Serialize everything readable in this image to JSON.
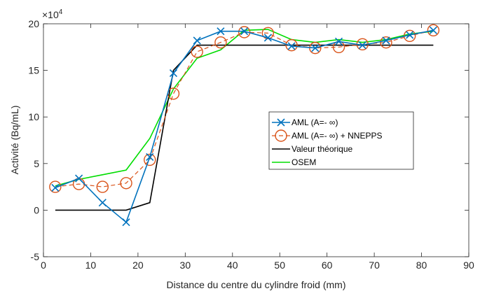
{
  "chart_data": {
    "type": "line",
    "xlabel": "Distance du centre du cylindre froid (mm)",
    "ylabel": "Activité (Bq/mL)",
    "y_exponent_label": "×10",
    "y_exponent_power": "4",
    "xlim": [
      0,
      90
    ],
    "ylim": [
      -5,
      20
    ],
    "xticks": [
      "0",
      "10",
      "20",
      "30",
      "40",
      "50",
      "60",
      "70",
      "80",
      "90"
    ],
    "yticks": [
      "-5",
      "0",
      "5",
      "10",
      "15",
      "20"
    ],
    "legend_position": "right",
    "series": [
      {
        "name": "AML (A=-  ∞)",
        "color": "#0072BD",
        "style": "solid",
        "marker": "x",
        "x": [
          2.5,
          7.5,
          12.5,
          17.5,
          22.5,
          27.5,
          32.5,
          37.5,
          42.5,
          47.5,
          52.5,
          57.5,
          62.5,
          67.5,
          72.5,
          77.5,
          82.5
        ],
        "y": [
          2.4,
          3.4,
          0.8,
          -1.3,
          5.7,
          14.7,
          18.2,
          19.2,
          19.2,
          18.5,
          17.6,
          17.4,
          18.1,
          17.7,
          18.2,
          18.8,
          19.3
        ]
      },
      {
        "name": "AML (A=-  ∞) + NNEPPS",
        "color": "#D95319",
        "style": "dashed",
        "marker": "o",
        "x": [
          2.5,
          7.5,
          12.5,
          17.5,
          22.5,
          27.5,
          32.5,
          37.5,
          42.5,
          47.5,
          52.5,
          57.5,
          62.5,
          67.5,
          72.5,
          77.5,
          82.5
        ],
        "y": [
          2.5,
          2.8,
          2.5,
          2.9,
          5.4,
          12.5,
          17.0,
          18.0,
          19.1,
          19.0,
          17.7,
          17.4,
          17.5,
          17.8,
          18.0,
          18.7,
          19.3
        ]
      },
      {
        "name": "Valeur théorique",
        "color": "#000000",
        "style": "solid",
        "marker": "none",
        "x": [
          2.5,
          17.5,
          22.5,
          27.5,
          32.5,
          82.5
        ],
        "y": [
          0,
          0,
          0.8,
          15.0,
          17.7,
          17.7
        ]
      },
      {
        "name": "OSEM",
        "color": "#00DD00",
        "style": "solid",
        "marker": "none",
        "x": [
          2.5,
          7.5,
          12.5,
          17.5,
          22.5,
          27.5,
          32.5,
          37.5,
          42.5,
          47.5,
          52.5,
          57.5,
          62.5,
          67.5,
          72.5,
          77.5,
          82.5
        ],
        "y": [
          2.6,
          3.3,
          3.8,
          4.3,
          7.7,
          13.0,
          16.3,
          17.2,
          19.3,
          19.4,
          18.3,
          18.0,
          18.3,
          18.0,
          18.3,
          18.9,
          19.2
        ]
      }
    ]
  }
}
